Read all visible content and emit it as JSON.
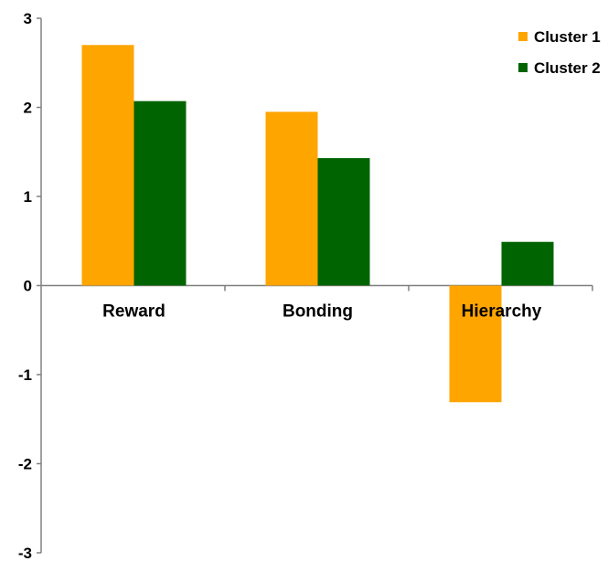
{
  "chart_data": {
    "type": "bar",
    "title": "",
    "xlabel": "",
    "ylabel": "",
    "categories": [
      "Reward",
      "Bonding",
      "Hierarchy"
    ],
    "series": [
      {
        "name": "Cluster 1",
        "color": "#FFA500",
        "values": [
          2.7,
          1.95,
          -1.31
        ]
      },
      {
        "name": "Cluster 2",
        "color": "#006400",
        "values": [
          2.07,
          1.43,
          0.49
        ]
      }
    ],
    "ylim": [
      -3,
      3
    ],
    "yticks": [
      "-3",
      "-2",
      "-1",
      "0",
      "1",
      "2",
      "3"
    ],
    "grid": false,
    "legend_position": "top-right"
  }
}
